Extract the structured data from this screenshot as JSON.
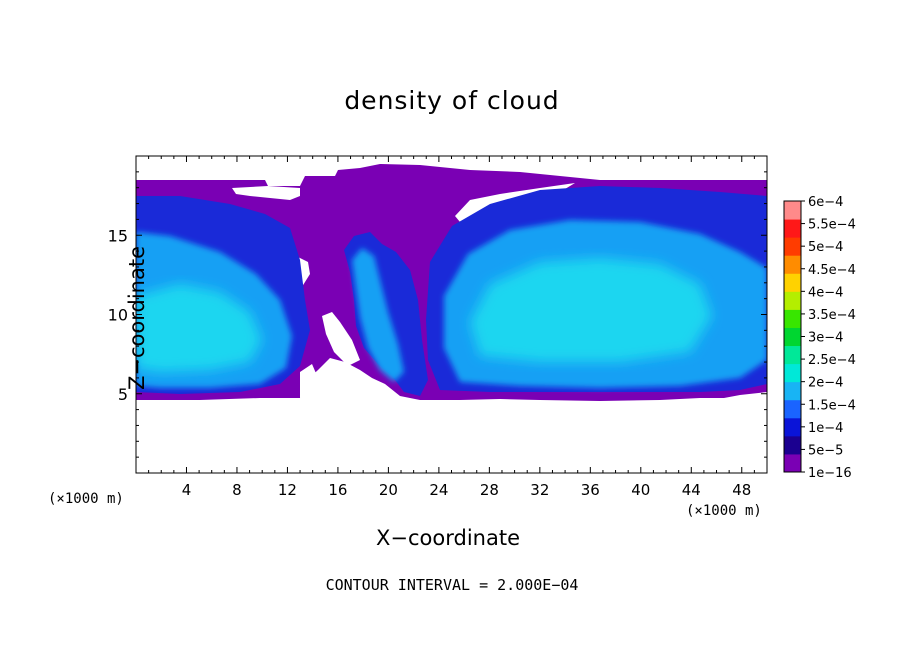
{
  "chart_data": {
    "type": "heatmap",
    "title": "density of cloud",
    "xlabel": "X−coordinate",
    "ylabel": "Z−coordinate",
    "x_unit_label": "(×1000 m)",
    "x_unit_label_right": "(×1000 m)",
    "xlim": [
      0,
      50
    ],
    "ylim": [
      0,
      20
    ],
    "xticks": [
      4,
      8,
      12,
      16,
      20,
      24,
      28,
      32,
      36,
      40,
      44,
      48
    ],
    "xtick_labels": [
      "4",
      "8",
      "12",
      "16",
      "20",
      "24",
      "28",
      "32",
      "36",
      "40",
      "44",
      "48"
    ],
    "yticks": [
      5,
      10,
      15
    ],
    "ytick_labels": [
      "5",
      "10",
      "15"
    ],
    "annotation": "CONTOUR INTERVAL = 2.000E−04",
    "colorbar": {
      "labels": [
        "1e−16",
        "5e−5",
        "1e−4",
        "1.5e−4",
        "2e−4",
        "2.5e−4",
        "3e−4",
        "3.5e−4",
        "4e−4",
        "4.5e−4",
        "5e−4",
        "5.5e−4",
        "6e−4"
      ],
      "values": [
        1e-16,
        5e-05,
        0.0001,
        0.00015,
        0.0002,
        0.00025,
        0.0003,
        0.00035,
        0.0004,
        0.00045,
        0.0005,
        0.00055,
        0.0006
      ],
      "colors": [
        "#7a00b4",
        "#1b0090",
        "#0a14d8",
        "#1a64ff",
        "#18b4f4",
        "#00e8d8",
        "#00e898",
        "#00d630",
        "#38e600",
        "#b4ee00",
        "#ffd200",
        "#ff8c00",
        "#ff3c00",
        "#ff1818",
        "#ff8a8a"
      ]
    },
    "colors": {
      "background": "#ffffff",
      "outer_cloud": "#7a00b4",
      "low_density": "#1a2ad8",
      "mid_density": "#18a0f4",
      "core_density": "#1ed6f0"
    }
  }
}
